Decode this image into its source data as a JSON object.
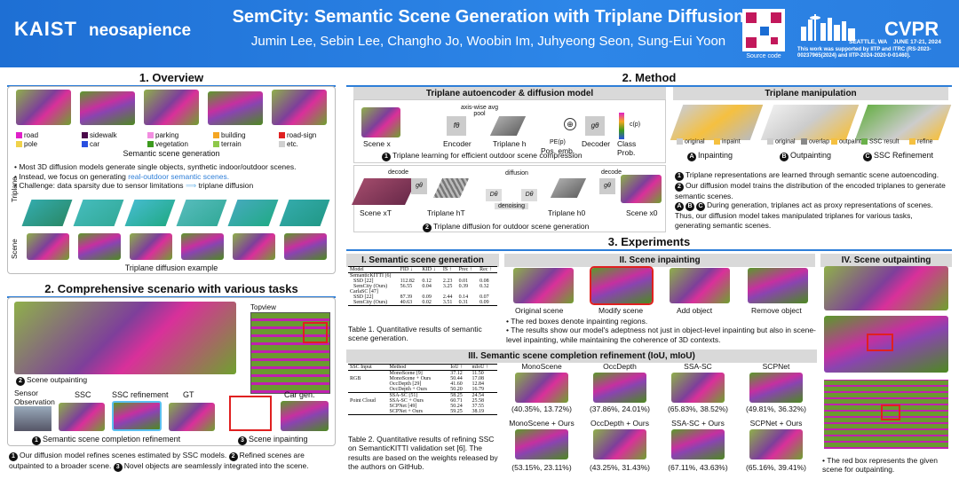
{
  "header": {
    "logo1": "KAIST",
    "logo2": "neosapience",
    "title": "SemCity: Semantic Scene Generation with Triplane Diffusion",
    "authors": "Jumin Lee, Sebin Lee, Changho Jo, Woobin Im, Juhyeong Seon, Sung-Eui Yoon",
    "qr_caption": "Source code",
    "conf": "CVPR",
    "conf_place": "SEATTLE, WA",
    "conf_dates": "JUNE 17-21, 2024",
    "support": "This work was supported by IITP and ITRC (RS-2023-00237965(2024) and IITP-2024-2020-0-01460)."
  },
  "overview": {
    "title": "1. Overview",
    "legend": [
      "road",
      "sidewalk",
      "parking",
      "building",
      "road-sign",
      "pole",
      "car",
      "vegetation",
      "terrain",
      "etc."
    ],
    "legend_colors": [
      "#e020c8",
      "#4b0a4b",
      "#f28de0",
      "#f5a623",
      "#e02020",
      "#f0d24a",
      "#2a50e0",
      "#3c9a1e",
      "#8ec84a",
      "#d0d0d0"
    ],
    "caption1": "Semantic scene generation",
    "bullets": [
      "Most 3D diffusion models generate single objects, synthetic indoor/outdoor scenes.",
      "Instead, we focus on generating ",
      "Challenge: data sparsity due to sensor limitations"
    ],
    "bullet2_link": "real-outdoor semantic scenes.",
    "arrow_text": "triplane diffusion",
    "row_triplane": "Triplane",
    "row_scene": "Scene",
    "caption2": "Triplane diffusion example"
  },
  "scenario": {
    "title": "2. Comprehensive scenario with various tasks",
    "topview": "Topview",
    "outpainting": "Scene outpainting",
    "sensor": "Sensor Observation",
    "ssc": "SSC",
    "ssc_ref": "SSC refinement",
    "gt": "GT",
    "car_gen": "Car gen.",
    "label1": "Semantic scene completion refinement",
    "label3": "Scene inpainting",
    "n1": "1",
    "n2": "2",
    "n3": "3",
    "desc1": "Our diffusion model refines scenes estimated by SSC models.",
    "desc2": "Refined scenes are outpainted to a broader scene.",
    "desc3": "Novel objects are seamlessly integrated into the scene."
  },
  "method": {
    "title": "2. Method",
    "ae_head": "Triplane autoencoder & diffusion model",
    "tm_head": "Triplane manipulation",
    "axis_pool": "axis-wise avg pool",
    "f_theta": "fθ",
    "g_theta": "gθ",
    "scene_x": "Scene x",
    "encoder": "Encoder",
    "triplane_h": "Triplane h",
    "pos_emb": "Pos. emb.",
    "decoder": "Decoder",
    "class_prob": "Class Prob.",
    "pe_p": "PE(p)",
    "c_p": "c(p)",
    "step1": "Triplane learning for efficient outdoor scene compression",
    "decode": "decode",
    "diffusion": "diffusion",
    "denoising": "denoising",
    "scene_xT": "Scene xT",
    "triplane_hT": "Triplane hT",
    "triplane_h0": "Triplane h0",
    "scene_x0": "Scene x0",
    "d_theta": "Dθ",
    "step2": "Triplane diffusion for outdoor scene generation",
    "manip_labels": [
      "original",
      "inpaint",
      "original",
      "overlap",
      "outpaint",
      "SSC result",
      "refine"
    ],
    "manip_tasks": [
      "Inpainting",
      "Outpainting",
      "SSC Refinement"
    ],
    "manip_letters": [
      "A",
      "B",
      "C"
    ],
    "notes": [
      "Triplane representations are learned through semantic scene autoencoding.",
      "Our diffusion model trains the distribution of the encoded triplanes to generate semantic scenes.",
      "During generation, triplanes act as proxy representations of scenes. Thus, our diffusion model takes manipulated triplanes for various tasks, generating semantic scenes."
    ]
  },
  "experiments": {
    "title": "3. Experiments",
    "s1_title": "I. Semantic scene generation",
    "s2_title": "II. Scene inpainting",
    "s3_title": "III. Semantic scene completion refinement (IoU, mIoU)",
    "s4_title": "IV. Scene outpainting",
    "table1": {
      "headers": [
        "Model",
        "FID ↓",
        "KID ↓",
        "IS ↑",
        "Prec ↑",
        "Rec ↑"
      ],
      "groups": [
        {
          "name": "SemanticKITTI [6]",
          "rows": [
            [
              "SSD [22]",
              "112.82",
              "0.12",
              "2.23",
              "0.01",
              "0.08"
            ],
            [
              "SemCity (Ours)",
              "56.55",
              "0.04",
              "3.25",
              "0.39",
              "0.32"
            ]
          ]
        },
        {
          "name": "CarlaSC [47]",
          "rows": [
            [
              "SSD [22]",
              "87.39",
              "0.09",
              "2.44",
              "0.14",
              "0.07"
            ],
            [
              "SemCity (Ours)",
              "40.63",
              "0.02",
              "3.51",
              "0.31",
              "0.09"
            ]
          ]
        }
      ]
    },
    "table1_caption": "Table 1. Quantitative results of semantic scene generation.",
    "inpaint_labels": [
      "Original scene",
      "Modify scene",
      "Add object",
      "Remove object"
    ],
    "inpaint_bullets": [
      "The red boxes denote inpainting regions.",
      "The results show our model's adeptness not just in object-level inpainting but also in scene-level inpainting, while maintaining the coherence of 3D contexts."
    ],
    "table2": {
      "headers": [
        "SSC Input",
        "Method",
        "IoU ↑",
        "mIoU ↑"
      ],
      "groups": [
        {
          "name": "RGB",
          "rows": [
            [
              "MonoScene [9]",
              "37.12",
              "11.50"
            ],
            [
              "MonoScene + Ours",
              "50.44",
              "17.08"
            ],
            [
              "OccDepth [29]",
              "41.60",
              "12.84"
            ],
            [
              "OccDepth + Ours",
              "50.20",
              "16.79"
            ]
          ]
        },
        {
          "name": "Point Cloud",
          "rows": [
            [
              "SSA-SC [51]",
              "58.25",
              "24.54"
            ],
            [
              "SSA-SC + Ours",
              "60.71",
              "25.58"
            ],
            [
              "SCPNet [49]",
              "50.24",
              "37.55"
            ],
            [
              "SCPNet + Ours",
              "59.25",
              "38.19"
            ]
          ]
        }
      ]
    },
    "table2_caption": "Table 2. Quantitative results of refining SSC on SemanticKITTI validation set [6]. The results are based on the weights released by the authors on GitHub.",
    "ssc_methods": [
      "MonoScene",
      "OccDepth",
      "SSA-SC",
      "SCPNet"
    ],
    "ssc_base_scores": [
      "(40.35%, 13.72%)",
      "(37.86%, 24.01%)",
      "(65.83%, 38.52%)",
      "(49.81%, 36.32%)"
    ],
    "ssc_ours": [
      "MonoScene + Ours",
      "OccDepth + Ours",
      "SSA-SC + Ours",
      "SCPNet + Ours"
    ],
    "ssc_ours_scores": [
      "(53.15%, 23.11%)",
      "(43.25%, 31.43%)",
      "(67.11%, 43.63%)",
      "(65.16%, 39.41%)"
    ],
    "outpaint_note": "The red box represents the given scene for outpainting."
  }
}
